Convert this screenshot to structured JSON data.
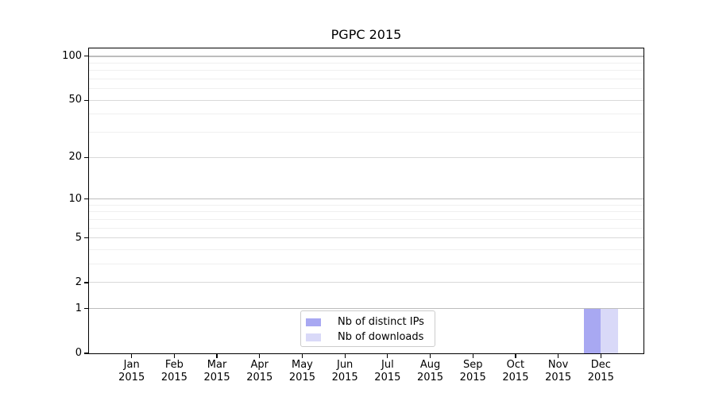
{
  "figure": {
    "background": "#ffffff"
  },
  "chart_data": {
    "type": "bar",
    "title": "PGPC 2015",
    "categories": [
      "Jan",
      "Feb",
      "Mar",
      "Apr",
      "May",
      "Jun",
      "Jul",
      "Aug",
      "Sep",
      "Oct",
      "Nov",
      "Dec"
    ],
    "category_year": "2015",
    "series": [
      {
        "name": "Nb of distinct IPs",
        "color": "#a8a8f2",
        "values": [
          0,
          0,
          0,
          0,
          0,
          0,
          0,
          0,
          0,
          0,
          0,
          1
        ]
      },
      {
        "name": "Nb of downloads",
        "color": "#d9d9f8",
        "values": [
          0,
          0,
          0,
          0,
          0,
          0,
          0,
          0,
          0,
          0,
          0,
          1
        ]
      }
    ],
    "xlabel": "",
    "ylabel": "",
    "yscale": "log1p",
    "ylim": [
      0,
      113
    ],
    "yticks": [
      0,
      1,
      2,
      5,
      10,
      20,
      50,
      100
    ],
    "yticks_minor": [
      3,
      4,
      6,
      7,
      8,
      9,
      30,
      40,
      60,
      70,
      80,
      90
    ],
    "grid": "horizontal",
    "legend_position": "lower center"
  },
  "colors": {
    "grid_decade": "#bdbdbd",
    "grid_mid": "#d9d9d9",
    "grid_minor": "#f0f0f0",
    "spine": "#000000",
    "text": "#000000",
    "legend_border": "#cccccc"
  }
}
